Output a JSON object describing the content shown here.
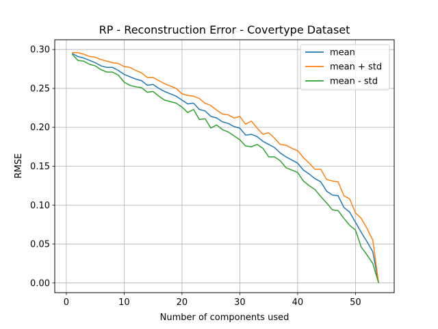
{
  "chart_data": {
    "type": "line",
    "title": "RP - Reconstruction Error - Covertype Dataset",
    "xlabel": "Number of components used",
    "ylabel": "RMSE",
    "xlim": [
      -2,
      56.7
    ],
    "ylim": [
      -0.0125,
      0.3125
    ],
    "xticks": [
      0,
      10,
      20,
      30,
      40,
      50
    ],
    "yticks": [
      0.0,
      0.05,
      0.1,
      0.15,
      0.2,
      0.25,
      0.3
    ],
    "grid": true,
    "legend_position": "top-right",
    "x": [
      1,
      2,
      3,
      4,
      5,
      6,
      7,
      8,
      9,
      10,
      11,
      12,
      13,
      14,
      15,
      16,
      17,
      18,
      19,
      20,
      21,
      22,
      23,
      24,
      25,
      26,
      27,
      28,
      29,
      30,
      31,
      32,
      33,
      34,
      35,
      36,
      37,
      38,
      39,
      40,
      41,
      42,
      43,
      44,
      45,
      46,
      47,
      48,
      49,
      50,
      51,
      52,
      53,
      54
    ],
    "series": [
      {
        "name": "mean",
        "color": "#1f77b4",
        "values": [
          0.295,
          0.291,
          0.289,
          0.286,
          0.283,
          0.279,
          0.277,
          0.277,
          0.273,
          0.268,
          0.265,
          0.262,
          0.26,
          0.254,
          0.255,
          0.25,
          0.246,
          0.243,
          0.24,
          0.235,
          0.23,
          0.231,
          0.223,
          0.221,
          0.214,
          0.212,
          0.207,
          0.205,
          0.201,
          0.199,
          0.19,
          0.191,
          0.188,
          0.182,
          0.178,
          0.174,
          0.167,
          0.162,
          0.158,
          0.154,
          0.145,
          0.14,
          0.134,
          0.13,
          0.118,
          0.113,
          0.112,
          0.097,
          0.091,
          0.078,
          0.065,
          0.053,
          0.04,
          0.0
        ]
      },
      {
        "name": "mean + std",
        "color": "#ff7f0e",
        "values": [
          0.296,
          0.296,
          0.294,
          0.291,
          0.29,
          0.287,
          0.285,
          0.283,
          0.282,
          0.278,
          0.277,
          0.273,
          0.27,
          0.264,
          0.264,
          0.26,
          0.256,
          0.253,
          0.25,
          0.243,
          0.241,
          0.24,
          0.237,
          0.231,
          0.228,
          0.222,
          0.217,
          0.216,
          0.212,
          0.214,
          0.204,
          0.208,
          0.199,
          0.191,
          0.193,
          0.186,
          0.178,
          0.177,
          0.173,
          0.17,
          0.161,
          0.154,
          0.146,
          0.146,
          0.133,
          0.131,
          0.13,
          0.112,
          0.108,
          0.09,
          0.083,
          0.07,
          0.055,
          0.0
        ]
      },
      {
        "name": "mean - std",
        "color": "#2ca02c",
        "values": [
          0.294,
          0.286,
          0.285,
          0.281,
          0.279,
          0.274,
          0.271,
          0.271,
          0.267,
          0.258,
          0.254,
          0.252,
          0.251,
          0.245,
          0.246,
          0.24,
          0.235,
          0.233,
          0.231,
          0.226,
          0.219,
          0.223,
          0.21,
          0.211,
          0.199,
          0.203,
          0.197,
          0.194,
          0.189,
          0.184,
          0.176,
          0.175,
          0.178,
          0.173,
          0.162,
          0.162,
          0.157,
          0.148,
          0.145,
          0.142,
          0.131,
          0.125,
          0.12,
          0.111,
          0.103,
          0.094,
          0.093,
          0.083,
          0.074,
          0.068,
          0.046,
          0.036,
          0.025,
          0.0
        ]
      }
    ]
  }
}
